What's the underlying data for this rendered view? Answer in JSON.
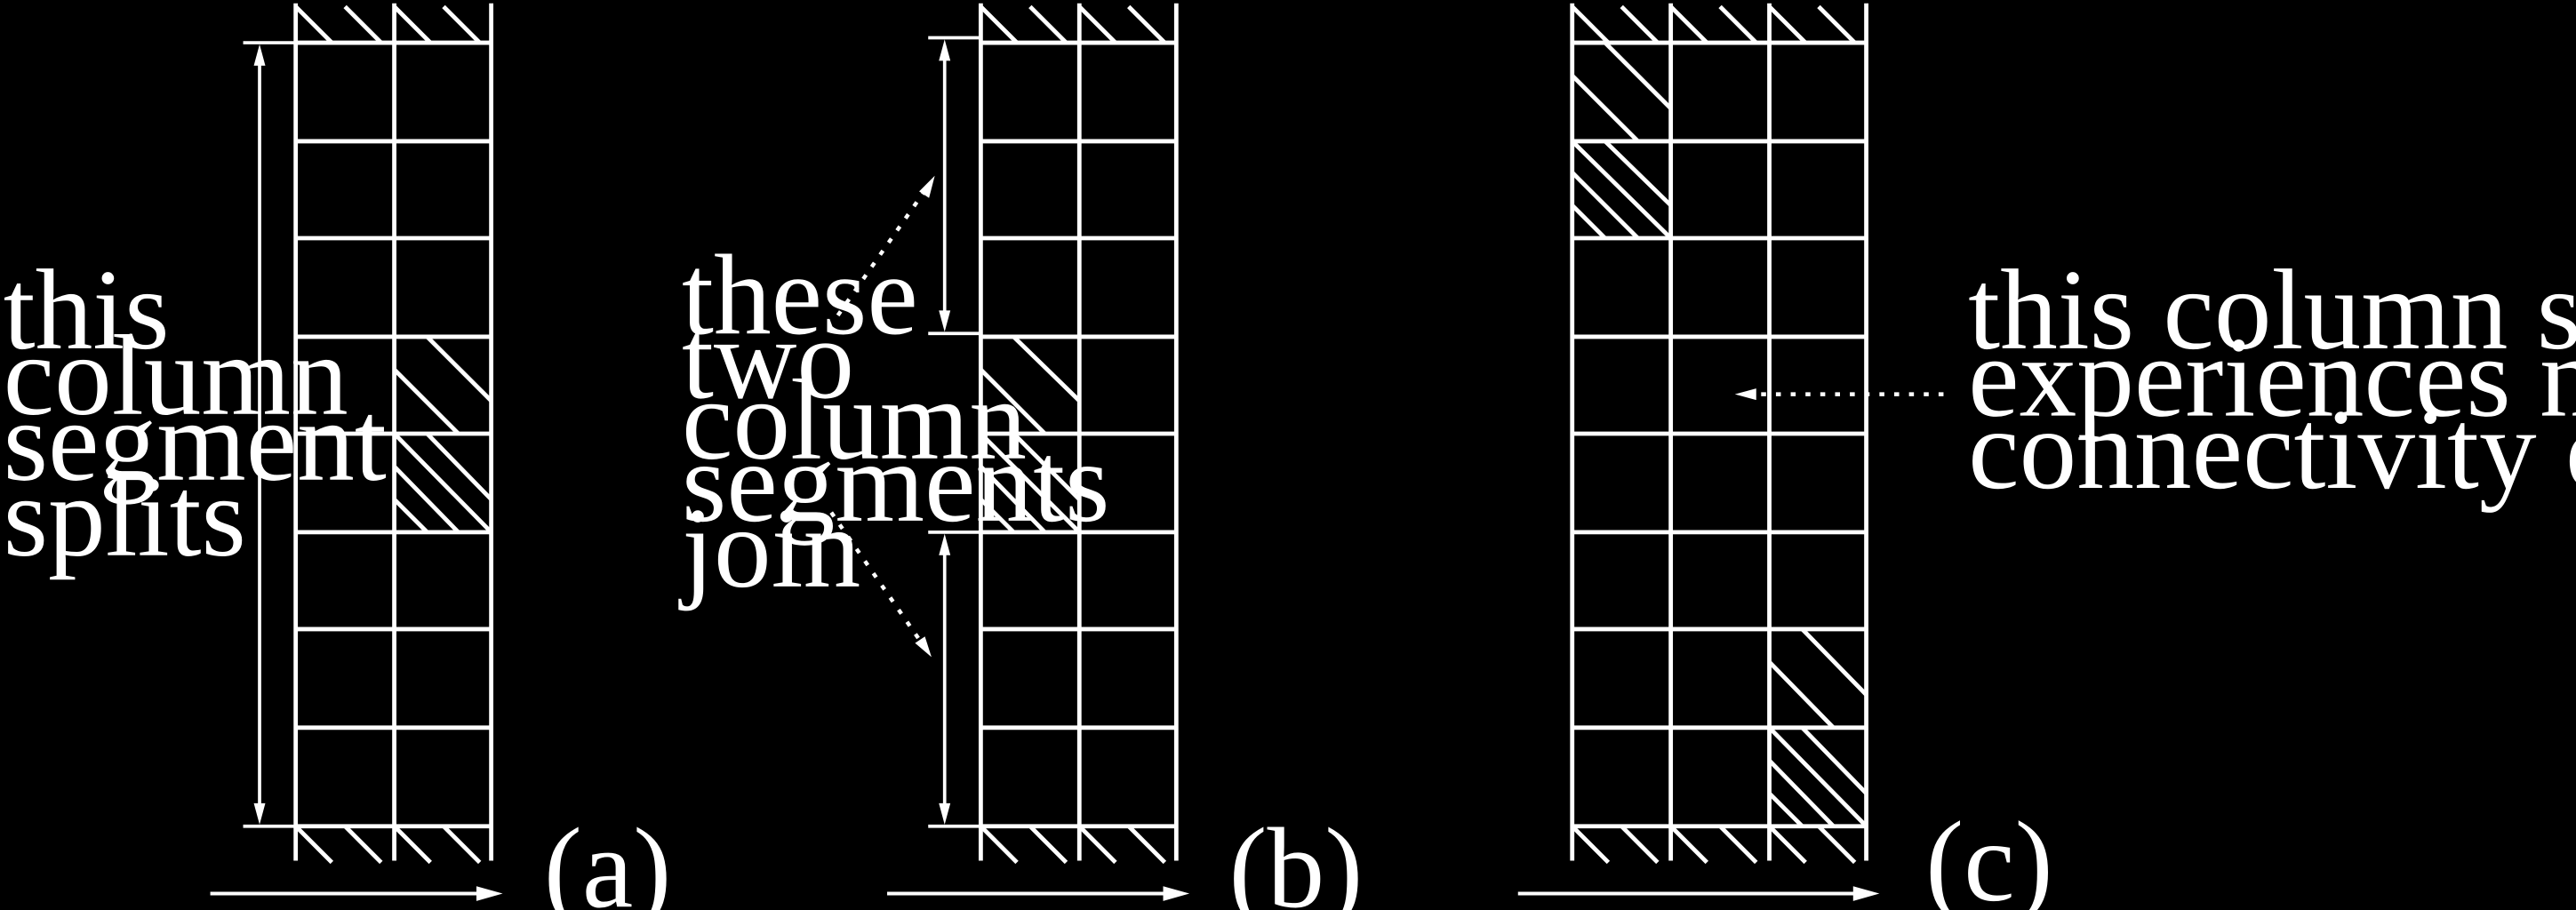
{
  "panels": [
    {
      "id": "a",
      "panel_label": "(a)",
      "annotation_lines": [
        "this",
        "column",
        "segment",
        "splits"
      ]
    },
    {
      "id": "b",
      "panel_label": "(b)",
      "annotation_lines": [
        "these",
        "two",
        "column",
        "segments",
        "join"
      ]
    },
    {
      "id": "c",
      "panel_label": "(c)",
      "annotation_lines": [
        "this column segment",
        "experiences no",
        "connectivity change"
      ]
    }
  ],
  "colors": {
    "background": "#000000",
    "stroke": "#ffffff"
  }
}
